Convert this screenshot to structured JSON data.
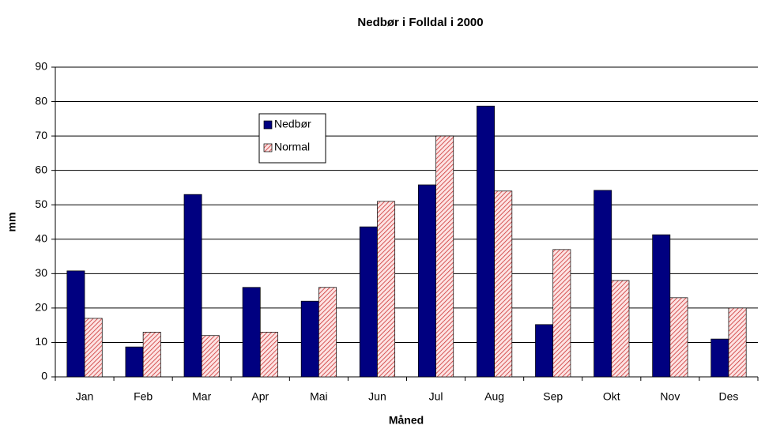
{
  "chart_data": {
    "type": "bar",
    "title": "Nedbør i Folldal i 2000",
    "x_label": "Måned",
    "y_label": "mm",
    "categories": [
      "Jan",
      "Feb",
      "Mar",
      "Apr",
      "Mai",
      "Jun",
      "Jul",
      "Aug",
      "Sep",
      "Okt",
      "Nov",
      "Des"
    ],
    "series": [
      {
        "name": "Nedbør",
        "color": "#000080",
        "values": [
          30.8,
          8.7,
          53,
          26,
          22,
          43.6,
          55.8,
          78.7,
          15.2,
          54.2,
          41.3,
          11
        ]
      },
      {
        "name": "Normal",
        "color": "#cc3333",
        "values": [
          17,
          13,
          12,
          13,
          26,
          51,
          70,
          54,
          37,
          28,
          23,
          20
        ]
      }
    ],
    "ylim": [
      0,
      90
    ],
    "yticks": [
      0,
      10,
      20,
      30,
      40,
      50,
      60,
      70,
      80,
      90
    ],
    "grid": true
  }
}
